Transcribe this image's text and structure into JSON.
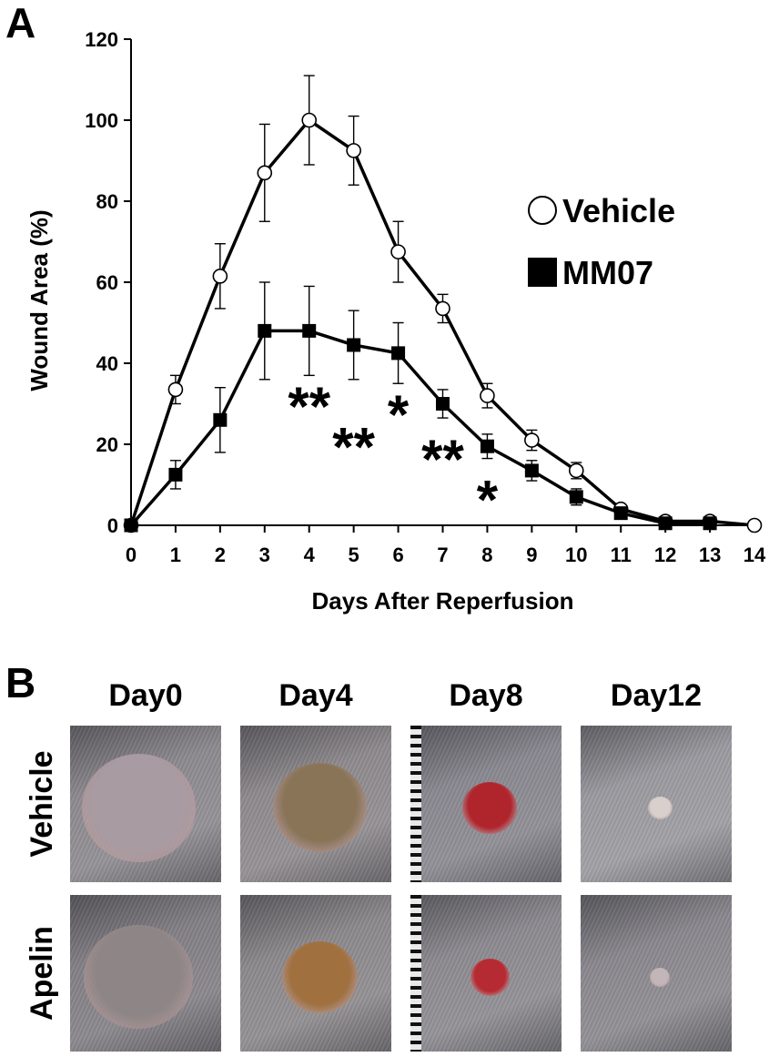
{
  "panels": {
    "a": "A",
    "b": "B"
  },
  "chart_data": {
    "type": "line",
    "xlabel": "Days After Reperfusion",
    "ylabel": "Wound Area (%)",
    "xlim": [
      0,
      14
    ],
    "ylim": [
      0,
      120
    ],
    "x_ticks": [
      0,
      1,
      2,
      3,
      4,
      5,
      6,
      7,
      8,
      9,
      10,
      11,
      12,
      13,
      14
    ],
    "y_ticks": [
      0,
      20,
      40,
      60,
      80,
      100,
      120
    ],
    "grid": false,
    "legend_position": "right",
    "series": [
      {
        "name": "Vehicle",
        "marker": "open-circle",
        "color": "#000000",
        "x": [
          0,
          1,
          2,
          3,
          4,
          5,
          6,
          7,
          8,
          9,
          10,
          11,
          12,
          13,
          14
        ],
        "y": [
          0,
          33.5,
          61.5,
          87,
          100,
          92.5,
          67.5,
          53.5,
          32,
          21,
          13.5,
          4,
          1,
          1,
          0
        ],
        "err": [
          0,
          3.5,
          8,
          12,
          11,
          8.5,
          7.5,
          3.5,
          3,
          2.5,
          2,
          1,
          0.5,
          0.5,
          0
        ]
      },
      {
        "name": "MM07",
        "marker": "filled-square",
        "color": "#000000",
        "x": [
          0,
          1,
          2,
          3,
          4,
          5,
          6,
          7,
          8,
          9,
          10,
          11,
          12,
          13
        ],
        "y": [
          0,
          12.5,
          26,
          48,
          48,
          44.5,
          42.5,
          30,
          19.5,
          13.5,
          7,
          3,
          0.5,
          0.5
        ],
        "err": [
          0,
          3.5,
          8,
          12,
          11,
          8.5,
          7.5,
          3.5,
          3,
          2.5,
          2,
          1,
          0.5,
          0.5
        ]
      }
    ],
    "annotations": [
      {
        "text": "**",
        "x": 4,
        "y": 31
      },
      {
        "text": "**",
        "x": 5,
        "y": 21
      },
      {
        "text": "*",
        "x": 6,
        "y": 29
      },
      {
        "text": "**",
        "x": 7,
        "y": 18
      },
      {
        "text": "*",
        "x": 8,
        "y": 8
      }
    ]
  },
  "photo_grid": {
    "columns": [
      "Day0",
      "Day4",
      "Day8",
      "Day12"
    ],
    "rows": [
      {
        "label": "Vehicle",
        "cells": [
          {
            "fur": "#8d8a8f",
            "wound": "#a89ba2",
            "size": 0.75,
            "ruler": false
          },
          {
            "fur": "#8e8a8e",
            "wound": "#8a7458",
            "size": 0.62,
            "ruler": false
          },
          {
            "fur": "#8a8890",
            "wound": "#b0242c",
            "size": 0.36,
            "ruler": true
          },
          {
            "fur": "#9a9aa0",
            "wound": "#d8d0cc",
            "size": 0.16,
            "ruler": false
          }
        ]
      },
      {
        "label": "Apelin",
        "cells": [
          {
            "fur": "#838085",
            "wound": "#8e8686",
            "size": 0.72,
            "ruler": false
          },
          {
            "fur": "#8c898c",
            "wound": "#a0703e",
            "size": 0.5,
            "ruler": false
          },
          {
            "fur": "#8c8a90",
            "wound": "#b62a32",
            "size": 0.26,
            "ruler": true
          },
          {
            "fur": "#8a888e",
            "wound": "#c2b6b8",
            "size": 0.13,
            "ruler": false
          }
        ]
      }
    ]
  }
}
